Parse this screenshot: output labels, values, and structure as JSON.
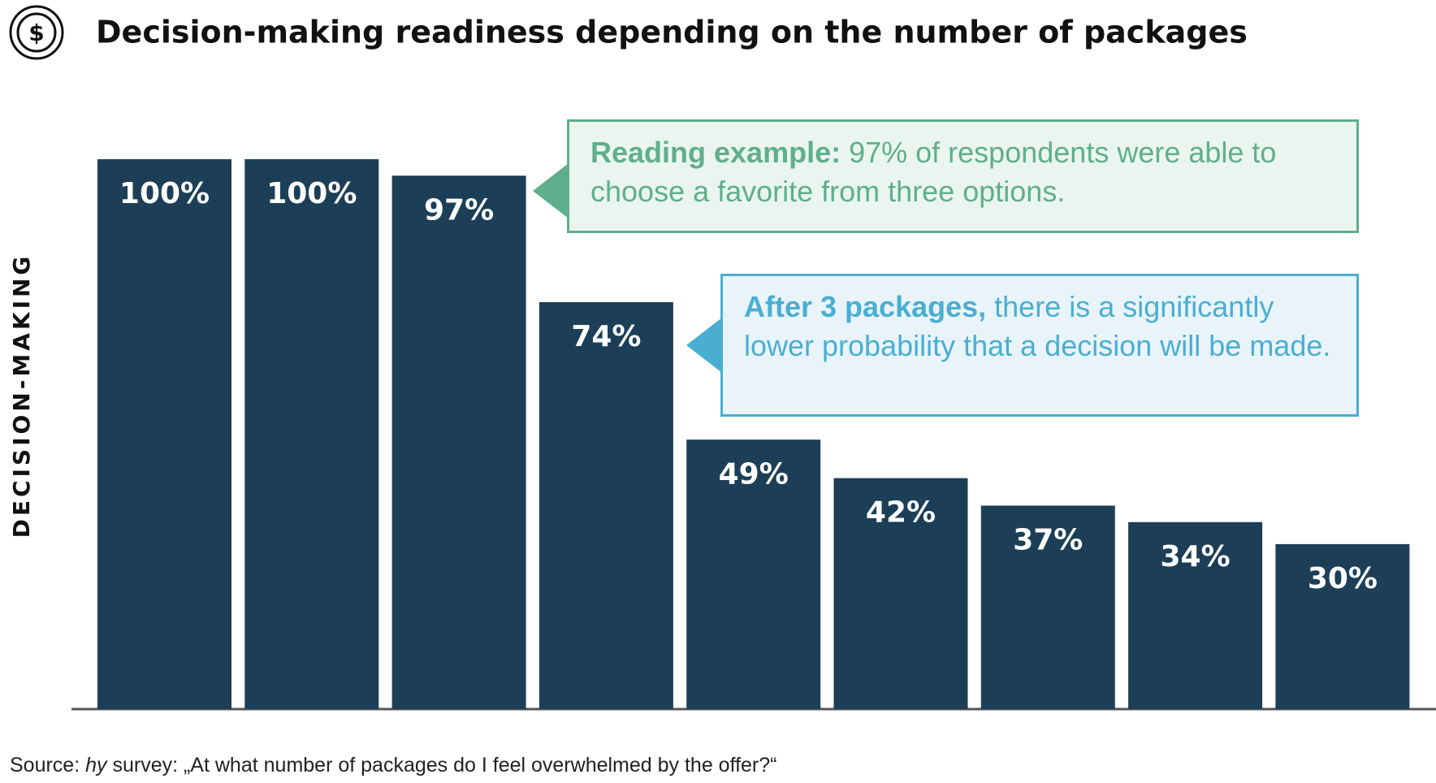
{
  "chart_data": {
    "type": "bar",
    "title": "Decision-making readiness depending on the number of packages",
    "y_label": "DECISION-MAKING",
    "values": [
      100,
      100,
      97,
      74,
      49,
      42,
      37,
      34,
      30
    ],
    "value_labels": [
      "100%",
      "100%",
      "97%",
      "74%",
      "49%",
      "42%",
      "37%",
      "34%",
      "30%"
    ],
    "color": "#1c3f57",
    "ylim": [
      0,
      100
    ],
    "annotations": [
      {
        "bold": "Reading example:",
        "text": " 97% of respondents were able to choose a favorite from three options.",
        "color": "#5fae8e"
      },
      {
        "bold": "After 3 packages,",
        "text": " there is a significantly lower probability that a decision will be made.",
        "color": "#4aaed2"
      }
    ],
    "source": {
      "prefix": "Source: ",
      "italic": "hy",
      "text": " survey: „At what number of packages do I feel overwhelmed by the offer?“"
    }
  }
}
